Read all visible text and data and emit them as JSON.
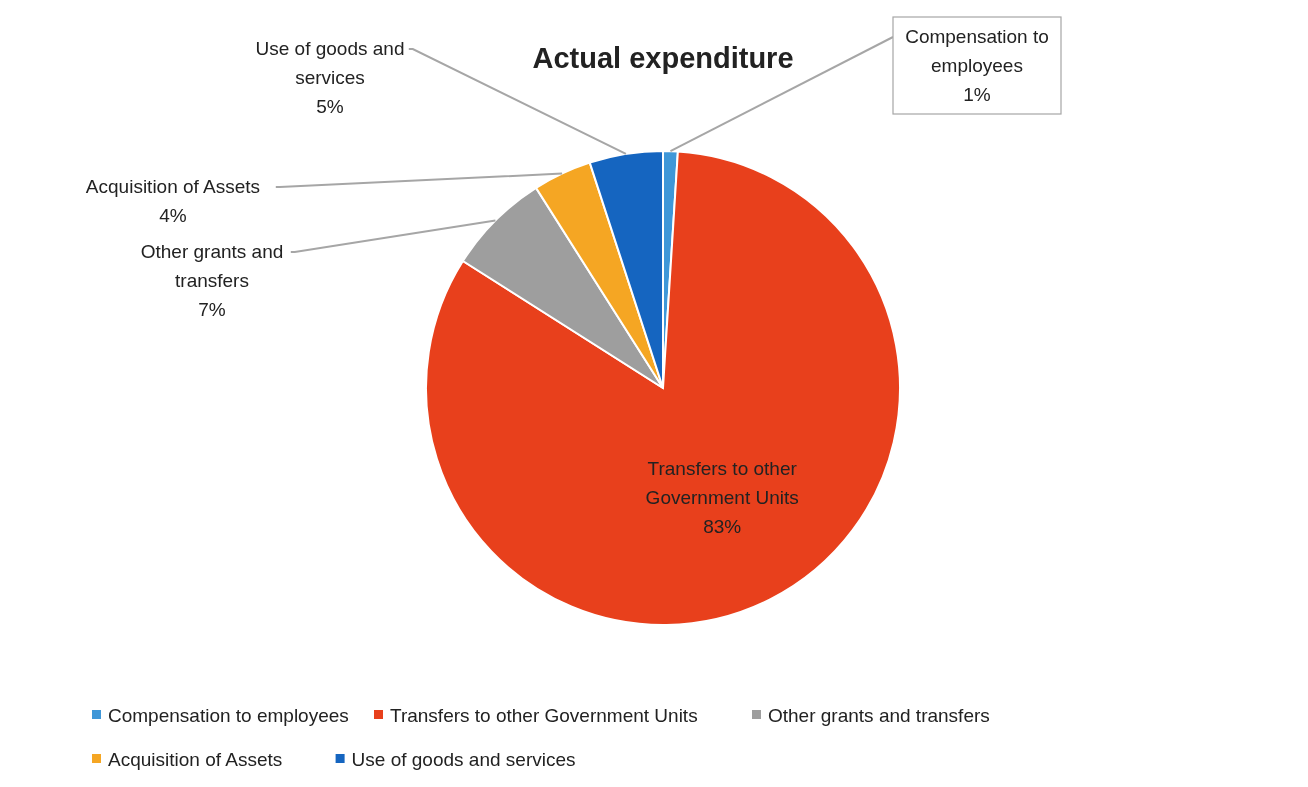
{
  "chart_data": {
    "type": "pie",
    "title": "Actual expenditure",
    "categories": [
      "Compensation to employees",
      "Transfers to other Government Units",
      "Other grants and transfers",
      "Acquisition of Assets",
      "Use of goods and services"
    ],
    "values": [
      1,
      83,
      7,
      4,
      5
    ],
    "colors": [
      "#3f97d8",
      "#e8401c",
      "#9e9e9e",
      "#f5a623",
      "#1565c0"
    ],
    "value_labels": [
      "1%",
      "83%",
      "7%",
      "4%",
      "5%"
    ],
    "legend": "bottom"
  }
}
